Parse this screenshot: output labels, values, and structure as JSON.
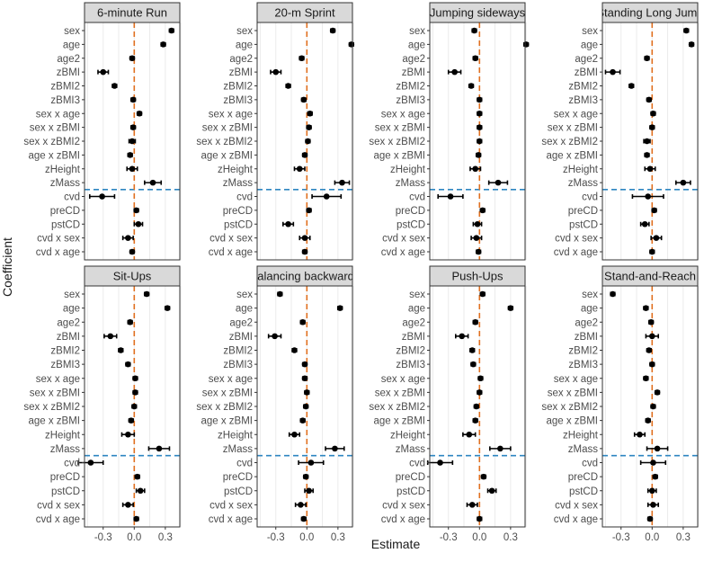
{
  "chart_data": {
    "type": "scatter",
    "subtype": "coefficient-plot-with-error-bars",
    "xlabel": "Estimate",
    "ylabel": "Coefficient",
    "xlim": [
      -0.48,
      0.44
    ],
    "x_ticks": [
      -0.3,
      0.0,
      0.3
    ],
    "x_tick_labels": [
      "-0.3",
      "0.0",
      "0.3"
    ],
    "reference_line_x": 0.0,
    "separator_after": "zMass",
    "coefficients": [
      "sex",
      "age",
      "age2",
      "zBMI",
      "zBMI2",
      "zBMI3",
      "sex x age",
      "sex x zBMI",
      "sex x zBMI2",
      "age x zBMI",
      "zHeight",
      "zMass",
      "cvd",
      "preCD",
      "pstCD",
      "cvd x sex",
      "cvd x age"
    ],
    "panels": [
      {
        "title": "6-minute Run",
        "values": [
          0.36,
          0.28,
          -0.02,
          -0.3,
          -0.19,
          -0.01,
          0.05,
          -0.01,
          -0.02,
          -0.04,
          -0.02,
          0.18,
          -0.31,
          0.02,
          0.04,
          -0.06,
          -0.02
        ],
        "errors": [
          0.02,
          0.02,
          0.02,
          0.05,
          0.02,
          0.02,
          0.02,
          0.02,
          0.03,
          0.02,
          0.05,
          0.08,
          0.12,
          0.02,
          0.04,
          0.05,
          0.02
        ]
      },
      {
        "title": "20-m Sprint",
        "values": [
          0.25,
          0.43,
          -0.05,
          -0.3,
          -0.18,
          -0.03,
          0.03,
          0.02,
          0.01,
          -0.02,
          -0.07,
          0.34,
          0.19,
          0.02,
          -0.18,
          -0.02,
          -0.02
        ],
        "errors": [
          0.02,
          0.02,
          0.02,
          0.05,
          0.02,
          0.02,
          0.02,
          0.02,
          0.02,
          0.02,
          0.05,
          0.07,
          0.14,
          0.02,
          0.05,
          0.05,
          0.02
        ]
      },
      {
        "title": "Jumping sideways",
        "values": [
          -0.05,
          0.45,
          -0.04,
          -0.24,
          -0.08,
          0.0,
          0.0,
          0.0,
          0.0,
          -0.01,
          -0.04,
          0.18,
          -0.28,
          0.03,
          -0.02,
          -0.03,
          -0.01
        ],
        "errors": [
          0.02,
          0.02,
          0.02,
          0.06,
          0.02,
          0.02,
          0.02,
          0.02,
          0.02,
          0.02,
          0.05,
          0.09,
          0.12,
          0.02,
          0.04,
          0.05,
          0.02
        ]
      },
      {
        "title": "Standing Long Jump",
        "values": [
          0.33,
          0.38,
          -0.05,
          -0.38,
          -0.2,
          -0.03,
          0.01,
          0.0,
          -0.05,
          -0.05,
          -0.02,
          0.3,
          -0.04,
          0.02,
          -0.07,
          0.04,
          0.0
        ],
        "errors": [
          0.02,
          0.02,
          0.02,
          0.07,
          0.02,
          0.02,
          0.02,
          0.02,
          0.03,
          0.02,
          0.05,
          0.07,
          0.15,
          0.02,
          0.04,
          0.05,
          0.02
        ]
      },
      {
        "title": "Sit-Ups",
        "values": [
          0.12,
          0.32,
          -0.04,
          -0.23,
          -0.13,
          -0.06,
          0.01,
          0.01,
          0.0,
          -0.03,
          -0.06,
          0.24,
          -0.42,
          0.03,
          0.06,
          -0.06,
          0.02
        ],
        "errors": [
          0.02,
          0.02,
          0.02,
          0.06,
          0.02,
          0.02,
          0.02,
          0.02,
          0.02,
          0.02,
          0.06,
          0.1,
          0.12,
          0.02,
          0.04,
          0.05,
          0.02
        ]
      },
      {
        "title": "Balancing backwards",
        "values": [
          -0.26,
          0.32,
          -0.04,
          -0.31,
          -0.12,
          -0.02,
          -0.02,
          0.0,
          -0.01,
          -0.04,
          -0.12,
          0.27,
          0.04,
          -0.01,
          0.02,
          -0.06,
          -0.03
        ],
        "errors": [
          0.02,
          0.02,
          0.02,
          0.06,
          0.02,
          0.02,
          0.02,
          0.02,
          0.02,
          0.02,
          0.05,
          0.09,
          0.12,
          0.02,
          0.04,
          0.05,
          0.02
        ]
      },
      {
        "title": "Push-Ups",
        "values": [
          0.03,
          0.3,
          -0.04,
          -0.17,
          -0.07,
          -0.06,
          0.01,
          0.0,
          -0.03,
          -0.04,
          -0.1,
          0.2,
          -0.38,
          0.04,
          0.12,
          -0.07,
          0.0
        ],
        "errors": [
          0.02,
          0.02,
          0.02,
          0.06,
          0.02,
          0.02,
          0.02,
          0.02,
          0.02,
          0.02,
          0.06,
          0.1,
          0.12,
          0.02,
          0.04,
          0.05,
          0.02
        ]
      },
      {
        "title": "Stand-and-Reach",
        "values": [
          -0.38,
          -0.06,
          -0.01,
          0.0,
          -0.03,
          0.0,
          -0.06,
          0.05,
          0.01,
          -0.04,
          -0.12,
          0.05,
          0.01,
          0.03,
          0.0,
          0.01,
          -0.02
        ],
        "errors": [
          0.02,
          0.02,
          0.02,
          0.06,
          0.02,
          0.02,
          0.02,
          0.02,
          0.02,
          0.02,
          0.05,
          0.1,
          0.12,
          0.02,
          0.04,
          0.05,
          0.02
        ]
      }
    ]
  }
}
